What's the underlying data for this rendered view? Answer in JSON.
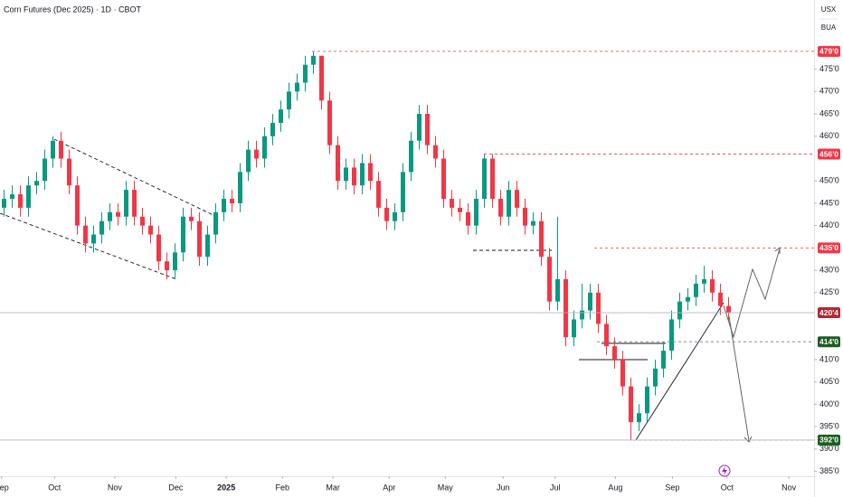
{
  "chart_data": {
    "type": "candlestick",
    "title": "Corn Futures (Dec 2025) · 1D · CBOT",
    "units": [
      "USX",
      "BUA"
    ],
    "up_color": "#089981",
    "down_color": "#f23645",
    "open": [
      444,
      446,
      447,
      444,
      449,
      450,
      455,
      459,
      455,
      449,
      440,
      436,
      438,
      441,
      443,
      442,
      448,
      442,
      440,
      438,
      432,
      430,
      434,
      442,
      441,
      433,
      438,
      443,
      446,
      445,
      452,
      457,
      455,
      460,
      463,
      466,
      470,
      472,
      476,
      478,
      468,
      458,
      450,
      453,
      449,
      454,
      450,
      444,
      441,
      443,
      452,
      459,
      465,
      458,
      455,
      446,
      444,
      443,
      440,
      446,
      455,
      446,
      442,
      448,
      444,
      440,
      441,
      433,
      423,
      428,
      415,
      419,
      421,
      425,
      418,
      413,
      410,
      404,
      396,
      398,
      404,
      408,
      412,
      419,
      423,
      424,
      427,
      428,
      425,
      422
    ],
    "high": [
      448,
      449,
      449,
      451,
      452,
      457,
      460,
      461,
      457,
      451,
      442,
      440,
      443,
      445,
      445,
      450,
      450,
      444,
      442,
      440,
      434,
      436,
      444,
      444,
      443,
      440,
      445,
      448,
      448,
      454,
      459,
      459,
      462,
      465,
      468,
      472,
      474,
      478,
      479,
      478,
      470,
      460,
      455,
      455,
      456,
      456,
      452,
      446,
      445,
      454,
      461,
      467,
      467,
      460,
      457,
      448,
      446,
      445,
      448,
      456,
      456,
      448,
      450,
      450,
      446,
      443,
      443,
      435,
      442,
      430,
      421,
      427,
      427,
      427,
      420,
      415,
      412,
      406,
      400,
      406,
      410,
      414,
      421,
      425,
      426,
      429,
      431,
      430,
      427,
      424
    ],
    "low": [
      442,
      444,
      442,
      442,
      447,
      448,
      453,
      453,
      447,
      438,
      434,
      434,
      436,
      439,
      440,
      440,
      440,
      438,
      436,
      430,
      428,
      428,
      432,
      439,
      431,
      431,
      436,
      441,
      443,
      443,
      450,
      453,
      453,
      458,
      461,
      464,
      468,
      470,
      474,
      466,
      456,
      448,
      448,
      447,
      447,
      448,
      442,
      439,
      439,
      441,
      450,
      457,
      456,
      453,
      444,
      442,
      441,
      438,
      438,
      444,
      444,
      440,
      440,
      442,
      438,
      438,
      431,
      421,
      421,
      413,
      413,
      417,
      419,
      416,
      411,
      408,
      402,
      392,
      394,
      396,
      402,
      406,
      410,
      417,
      421,
      422,
      425,
      423,
      420,
      418.5
    ],
    "close": [
      446,
      447,
      444,
      449,
      450,
      455,
      459,
      455,
      449,
      440,
      436,
      438,
      441,
      443,
      442,
      448,
      442,
      440,
      438,
      432,
      430,
      434,
      442,
      441,
      433,
      438,
      443,
      446,
      445,
      452,
      457,
      455,
      460,
      463,
      466,
      470,
      472,
      476,
      478,
      468,
      458,
      450,
      453,
      449,
      454,
      450,
      444,
      441,
      443,
      452,
      459,
      465,
      458,
      455,
      446,
      444,
      443,
      440,
      446,
      455,
      446,
      442,
      448,
      444,
      440,
      441,
      433,
      423,
      428,
      415,
      419,
      421,
      425,
      418,
      413,
      410,
      404,
      396,
      398,
      404,
      408,
      412,
      419,
      423,
      424,
      427,
      428,
      425,
      422,
      420.5
    ],
    "xlim": [
      -0.5,
      99.5
    ],
    "xticks": [
      {
        "value": -0.3,
        "label": "Sep"
      },
      {
        "value": 6.2,
        "label": "Oct"
      },
      {
        "value": 13.6,
        "label": "Nov"
      },
      {
        "value": 21.1,
        "label": "Dec"
      },
      {
        "value": 27.3,
        "label": "2025"
      },
      {
        "value": 34.2,
        "label": "Feb"
      },
      {
        "value": 40.4,
        "label": "Mar"
      },
      {
        "value": 47.3,
        "label": "Apr"
      },
      {
        "value": 54.2,
        "label": "May"
      },
      {
        "value": 61.3,
        "label": "Jun"
      },
      {
        "value": 67.7,
        "label": "Jul"
      },
      {
        "value": 75.1,
        "label": "Aug"
      },
      {
        "value": 82.1,
        "label": "Sep"
      },
      {
        "value": 88.8,
        "label": "Oct"
      },
      {
        "value": 96.4,
        "label": "Nov"
      }
    ],
    "ylim": [
      383.9,
      490.5
    ],
    "yticks": [
      {
        "value": 385,
        "label": "385'0"
      },
      {
        "value": 390,
        "label": "390'0"
      },
      {
        "value": 395,
        "label": "395'0"
      },
      {
        "value": 400,
        "label": "400'0"
      },
      {
        "value": 405,
        "label": "405'0"
      },
      {
        "value": 410,
        "label": "410'0"
      },
      {
        "value": 425,
        "label": "425'0"
      },
      {
        "value": 430,
        "label": "430'0"
      },
      {
        "value": 440,
        "label": "440'0"
      },
      {
        "value": 445,
        "label": "445'0"
      },
      {
        "value": 450,
        "label": "450'0"
      },
      {
        "value": 460,
        "label": "460'0"
      },
      {
        "value": 465,
        "label": "465'0"
      },
      {
        "value": 470,
        "label": "470'0"
      },
      {
        "value": 475,
        "label": "475'0"
      }
    ],
    "levels": [
      {
        "value": 479,
        "label": "479'0",
        "color": "#f23645"
      },
      {
        "value": 456,
        "label": "456'0",
        "color": "#f23645"
      },
      {
        "value": 435,
        "label": "435'0",
        "color": "#f23645"
      },
      {
        "value": 420.5,
        "label": "420'4",
        "color": "#b22833"
      },
      {
        "value": 414,
        "label": "414'0",
        "color": "#1b5e20"
      },
      {
        "value": 392,
        "label": "392'0",
        "color": "#1b5e20"
      }
    ]
  }
}
